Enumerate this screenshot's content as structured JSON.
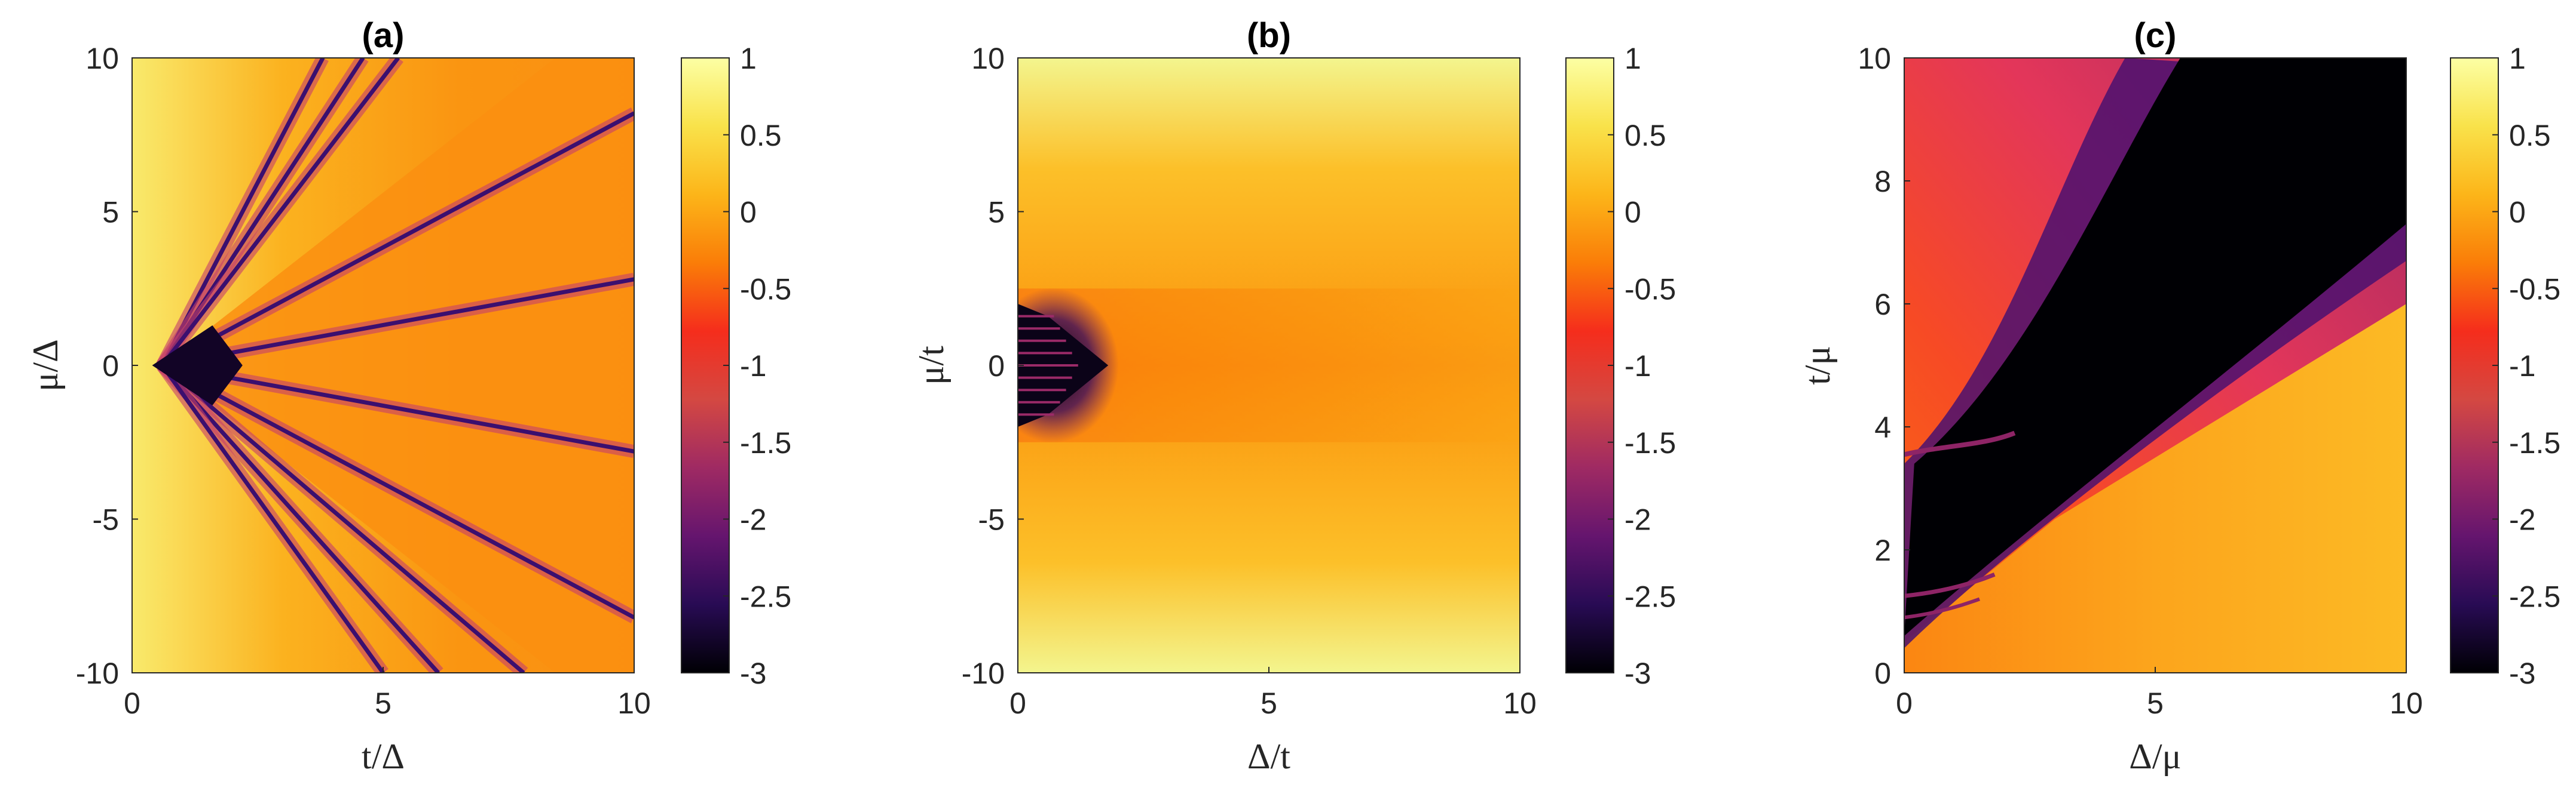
{
  "chart_data": [
    {
      "type": "heatmap",
      "title": "(a)",
      "xlabel": "t/Δ",
      "ylabel": "μ/Δ",
      "xlim": [
        0,
        10
      ],
      "ylim": [
        -10,
        10
      ],
      "xticks": [
        "0",
        "5",
        "10"
      ],
      "yticks": [
        "-10",
        "-5",
        "0",
        "5",
        "10"
      ],
      "colorbar": {
        "range": [
          -3,
          1
        ],
        "ticks": [
          "1",
          "0.5",
          "0",
          "-0.5",
          "-1",
          "-1.5",
          "-2",
          "-2.5",
          "-3"
        ]
      }
    },
    {
      "type": "heatmap",
      "title": "(b)",
      "xlabel": "Δ/t",
      "ylabel": "μ/t",
      "xlim": [
        0,
        10
      ],
      "ylim": [
        -10,
        10
      ],
      "xticks": [
        "0",
        "5",
        "10"
      ],
      "yticks": [
        "-10",
        "-5",
        "0",
        "5",
        "10"
      ],
      "colorbar": {
        "range": [
          -3,
          1
        ],
        "ticks": [
          "1",
          "0.5",
          "0",
          "-0.5",
          "-1",
          "-1.5",
          "-2",
          "-2.5",
          "-3"
        ]
      }
    },
    {
      "type": "heatmap",
      "title": "(c)",
      "xlabel": "Δ/μ",
      "ylabel": "t/μ",
      "xlim": [
        0,
        10
      ],
      "ylim": [
        0,
        10
      ],
      "xticks": [
        "0",
        "5",
        "10"
      ],
      "yticks": [
        "0",
        "2",
        "4",
        "6",
        "8",
        "10"
      ],
      "colorbar": {
        "range": [
          -3,
          1
        ],
        "ticks": [
          "1",
          "0.5",
          "0",
          "-0.5",
          "-1",
          "-1.5",
          "-2",
          "-2.5",
          "-3"
        ]
      }
    }
  ],
  "colormap": [
    "#000004",
    "#280b54",
    "#65156e",
    "#9f2a63",
    "#d44842",
    "#f52d1c",
    "#fa7d08",
    "#fcb519",
    "#f9e24a",
    "#fcffa4"
  ]
}
